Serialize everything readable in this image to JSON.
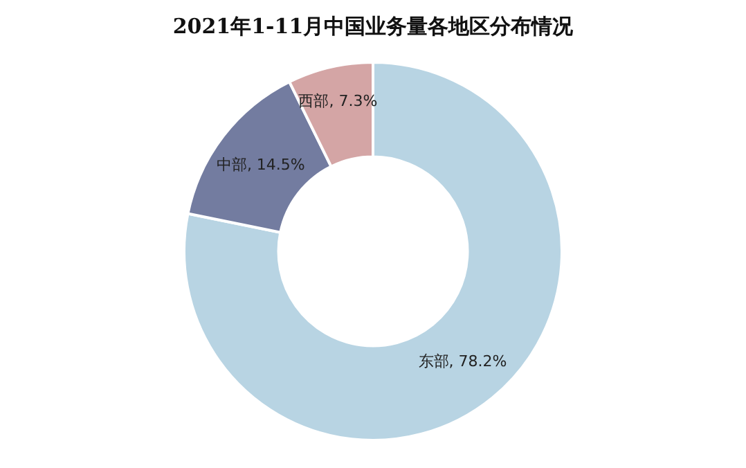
{
  "chart_data": {
    "type": "donut",
    "title": "2021年1-11月中国业务量各地区分布情况",
    "categories": [
      "东部",
      "中部",
      "西部"
    ],
    "values": [
      78.2,
      14.5,
      7.3
    ],
    "colors": [
      "#b8d4e3",
      "#737ca0",
      "#d4a5a5"
    ],
    "value_labels": [
      "78.2%",
      "14.5%",
      "7.3%"
    ],
    "legend": false
  }
}
